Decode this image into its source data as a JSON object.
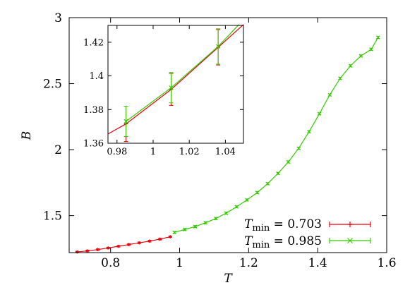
{
  "chart_data": [
    {
      "type": "line",
      "xlabel": "T",
      "ylabel": "B",
      "xlim": [
        0.68,
        1.6
      ],
      "ylim": [
        1.22,
        3.0
      ],
      "xticks": [
        0.8,
        1.0,
        1.2,
        1.4,
        1.6
      ],
      "xtick_labels": [
        "0.8",
        "1",
        "1.2",
        "1.4",
        "1.6"
      ],
      "yticks": [
        1.5,
        2.0,
        2.5,
        3.0
      ],
      "ytick_labels": [
        "1.5",
        "2",
        "2.5",
        "3"
      ],
      "grid": false,
      "legend_position": "bottom-right",
      "series": [
        {
          "name": "T_min = 0.703",
          "legend_main": "T",
          "legend_sub": "min",
          "legend_value": " = 0.703",
          "color": "#e8000b",
          "marker": "plus",
          "x": [
            0.703,
            0.733,
            0.763,
            0.793,
            0.823,
            0.853,
            0.883,
            0.913,
            0.943,
            0.973
          ],
          "y": [
            1.225,
            1.233,
            1.243,
            1.255,
            1.268,
            1.281,
            1.294,
            1.307,
            1.322,
            1.34
          ],
          "err": [
            0.006,
            0.006,
            0.006,
            0.006,
            0.006,
            0.006,
            0.006,
            0.006,
            0.006,
            0.006
          ]
        },
        {
          "name": "T_min = 0.985",
          "legend_main": "T",
          "legend_sub": "min",
          "legend_value": " = 0.985",
          "color": "#33cc00",
          "marker": "cross",
          "x": [
            0.985,
            1.015,
            1.045,
            1.075,
            1.105,
            1.135,
            1.165,
            1.195,
            1.225,
            1.255,
            1.285,
            1.315,
            1.345,
            1.375,
            1.405,
            1.435,
            1.465,
            1.495,
            1.525,
            1.555,
            1.575
          ],
          "y": [
            1.373,
            1.395,
            1.417,
            1.446,
            1.478,
            1.519,
            1.567,
            1.619,
            1.675,
            1.742,
            1.82,
            1.907,
            2.01,
            2.136,
            2.272,
            2.415,
            2.54,
            2.635,
            2.71,
            2.76,
            2.85
          ],
          "err": [
            0.008,
            0.008,
            0.008,
            0.008,
            0.008,
            0.008,
            0.008,
            0.008,
            0.008,
            0.008,
            0.008,
            0.008,
            0.008,
            0.008,
            0.008,
            0.008,
            0.008,
            0.008,
            0.008,
            0.008,
            0.008
          ]
        }
      ]
    },
    {
      "type": "line",
      "xlim": [
        0.975,
        1.05
      ],
      "ylim": [
        1.36,
        1.43
      ],
      "xticks": [
        0.98,
        1.0,
        1.02,
        1.04
      ],
      "xtick_labels": [
        "0.98",
        "1",
        "1.02",
        "1.04"
      ],
      "yticks": [
        1.36,
        1.38,
        1.4,
        1.42
      ],
      "ytick_labels": [
        "1.36",
        "1.38",
        "1.4",
        "1.42"
      ],
      "grid": false,
      "series": [
        {
          "name": "T_min = 0.703",
          "color": "#e8000b",
          "marker": "plus",
          "x": [
            0.975,
            0.985,
            1.01,
            1.036,
            1.05
          ],
          "y": [
            1.3655,
            1.3715,
            1.392,
            1.417,
            1.4305
          ],
          "err": [
            0,
            0.0105,
            0.0095,
            0.0105,
            0
          ]
        },
        {
          "name": "T_min = 0.985",
          "color": "#33cc00",
          "marker": "cross",
          "x": [
            0.985,
            1.01,
            1.036,
            1.0475
          ],
          "y": [
            1.373,
            1.393,
            1.4175,
            1.4305
          ],
          "err": [
            0.009,
            0.009,
            0.0105,
            0
          ]
        }
      ]
    }
  ]
}
